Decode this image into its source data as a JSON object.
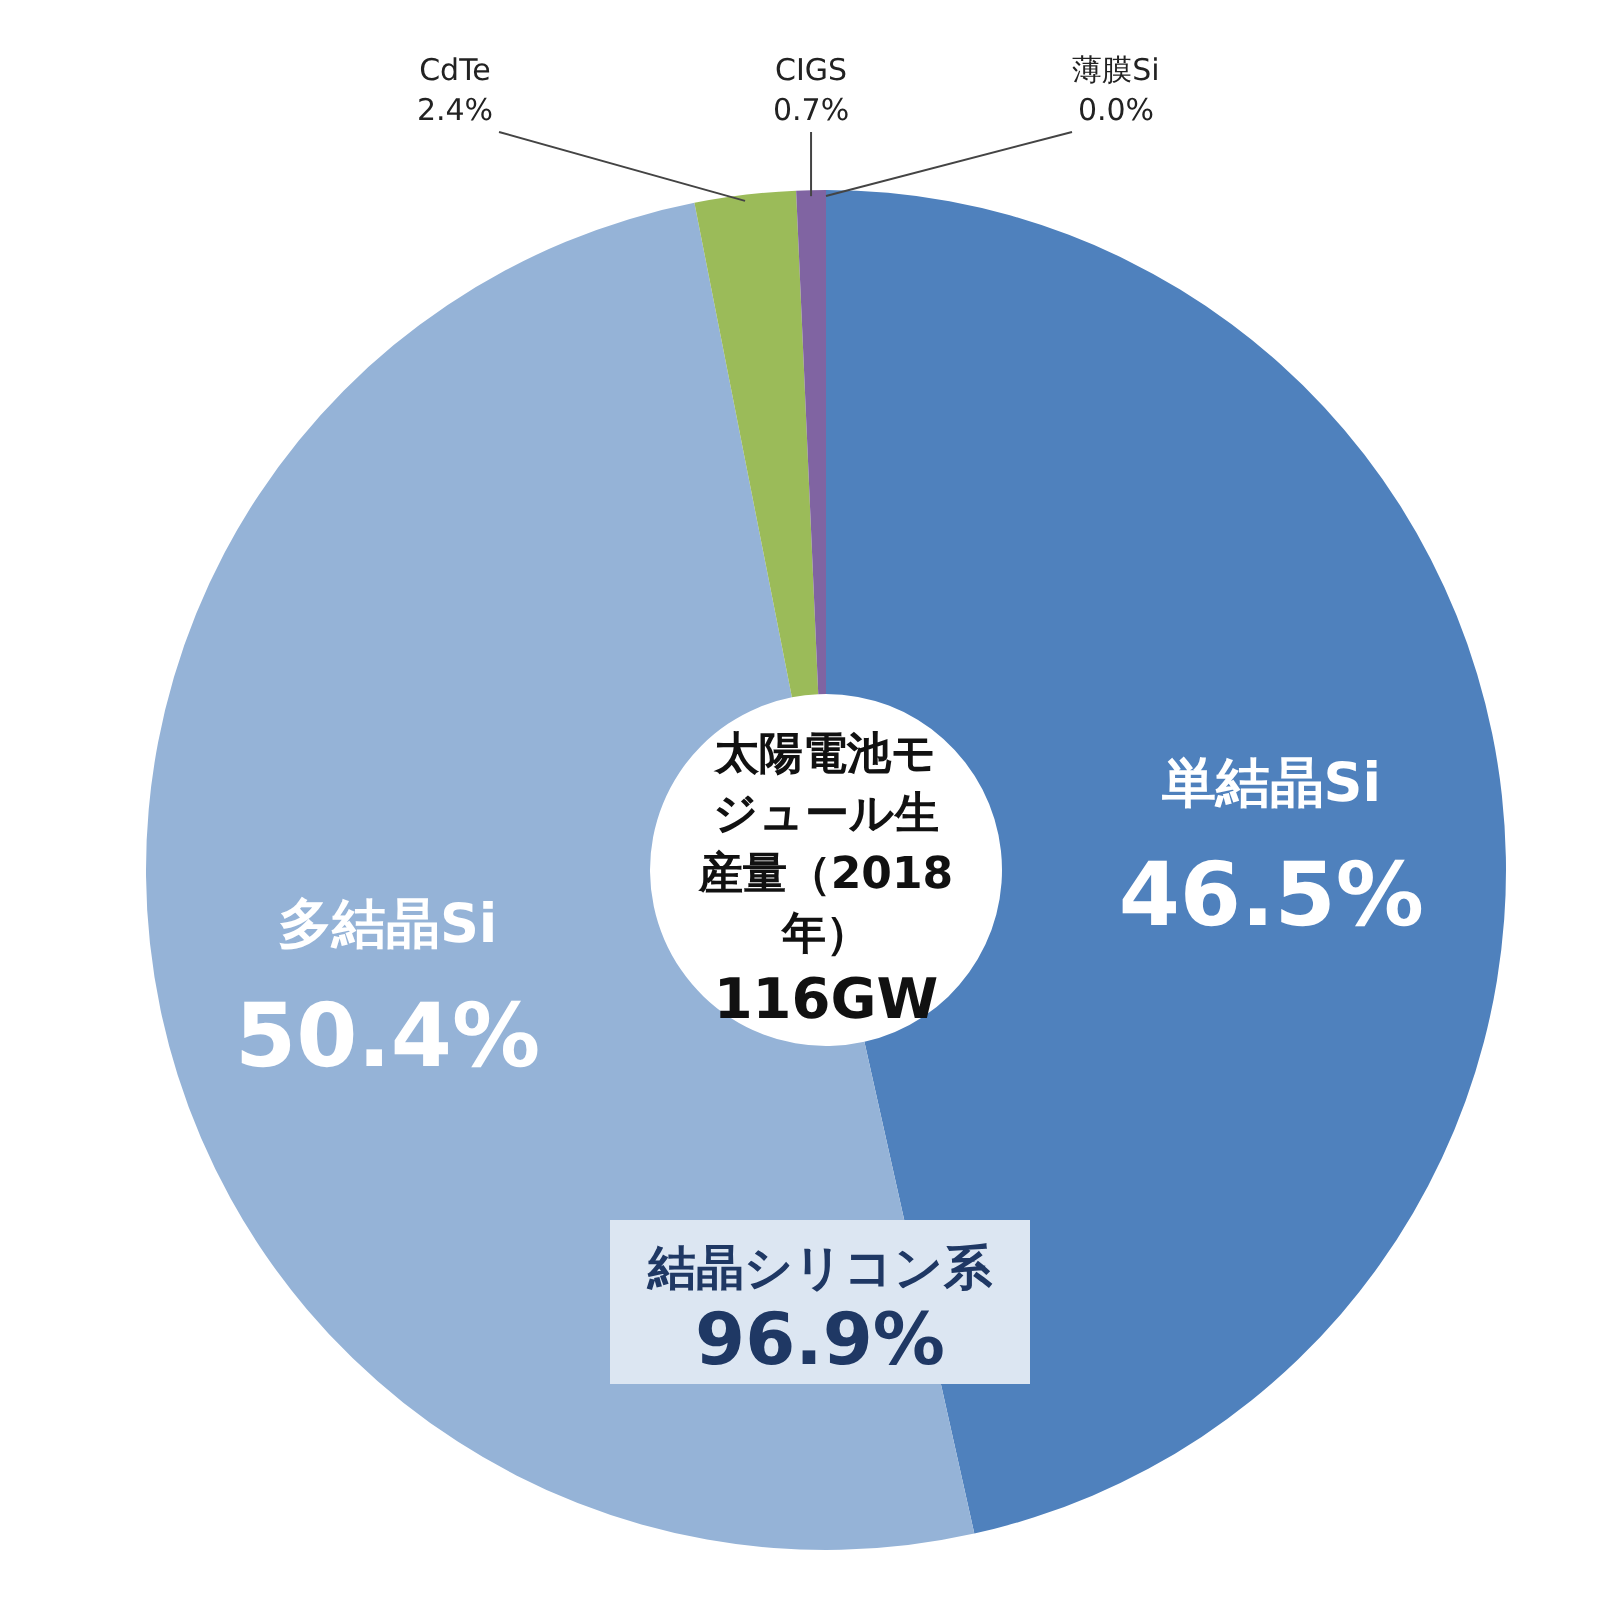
{
  "chart_data": {
    "type": "donut",
    "title": "太陽電池モジュール生産量（2018年）",
    "subtitle": "116GW",
    "categories": [
      "単結晶Si",
      "多結晶Si",
      "CdTe",
      "CIGS",
      "薄膜Si"
    ],
    "values": [
      46.5,
      50.4,
      2.4,
      0.7,
      0.0
    ],
    "value_labels": [
      "46.5%",
      "50.4%",
      "2.4%",
      "0.7%",
      "0.0%"
    ],
    "colors": [
      "#4f81bd",
      "#95b3d7",
      "#9bbb59",
      "#8064a2",
      null
    ],
    "annotations": [
      "結晶シリコン系",
      "96.9%"
    ]
  }
}
